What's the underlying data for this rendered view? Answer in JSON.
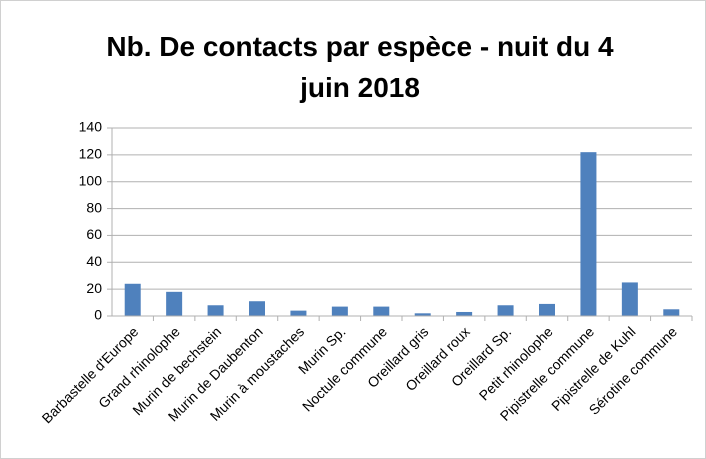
{
  "chart_data": {
    "type": "bar",
    "title": "Nb. De contacts par espèce - nuit du 4 juin 2018",
    "categories": [
      "Barbastelle d'Europe",
      "Grand rhinolophe",
      "Murin de bechstein",
      "Murin de Daubenton",
      "Murin à moustaches",
      "Murin Sp.",
      "Noctule commune",
      "Oreillard gris",
      "Oreillard roux",
      "Oreillard Sp.",
      "Petit rhinolophe",
      "Pipistrelle commune",
      "Pipistrelle de Kuhl",
      "Sérotine commune"
    ],
    "values": [
      24,
      18,
      8,
      11,
      4,
      7,
      7,
      2,
      3,
      8,
      9,
      122,
      25,
      5
    ],
    "color": "#4f81bd",
    "ylim": [
      0,
      140
    ],
    "yticks": [
      0,
      20,
      40,
      60,
      80,
      100,
      120,
      140
    ],
    "grid": true
  }
}
